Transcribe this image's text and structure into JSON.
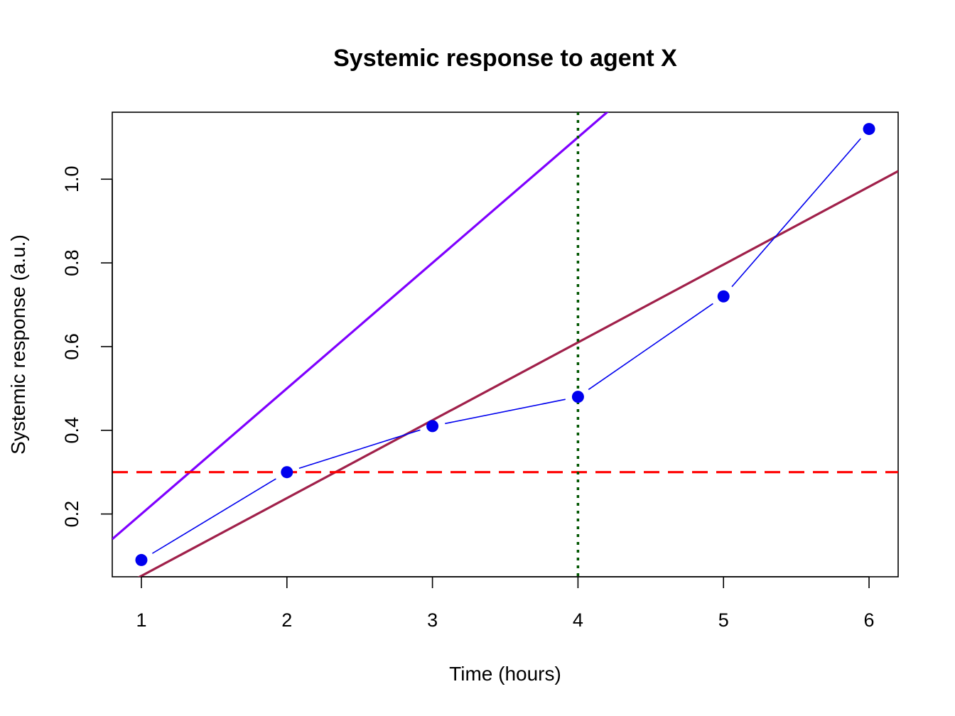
{
  "chart_data": {
    "type": "line",
    "title": "Systemic response to agent X",
    "xlabel": "Time (hours)",
    "ylabel": "Systemic response (a.u.)",
    "xlim": [
      0.8,
      6.2
    ],
    "ylim": [
      0.05,
      1.16
    ],
    "x_ticks": [
      1,
      2,
      3,
      4,
      5,
      6
    ],
    "y_ticks": [
      0.2,
      0.4,
      0.6,
      0.8,
      1.0
    ],
    "y_tick_labels": [
      "0.2",
      "0.4",
      "0.6",
      "0.8",
      "1.0"
    ],
    "grid": false,
    "legend": "none",
    "series": [
      {
        "x": [
          1,
          2,
          3,
          4,
          5,
          6
        ],
        "values": [
          0.09,
          0.3,
          0.41,
          0.48,
          0.72,
          1.12
        ],
        "color": "#0000ee",
        "style": "points-and-lines"
      }
    ],
    "reference_lines": [
      {
        "kind": "abline",
        "intercept": -0.1,
        "slope": 0.3,
        "color": "#7f00ff",
        "style": "solid"
      },
      {
        "kind": "abline",
        "intercept": -0.134,
        "slope": 0.186,
        "color": "#a0204a",
        "style": "solid"
      },
      {
        "kind": "hline",
        "y": 0.3,
        "color": "#ff0000",
        "style": "dashed"
      },
      {
        "kind": "vline",
        "x": 4,
        "color": "#005500",
        "style": "dotted"
      }
    ]
  }
}
